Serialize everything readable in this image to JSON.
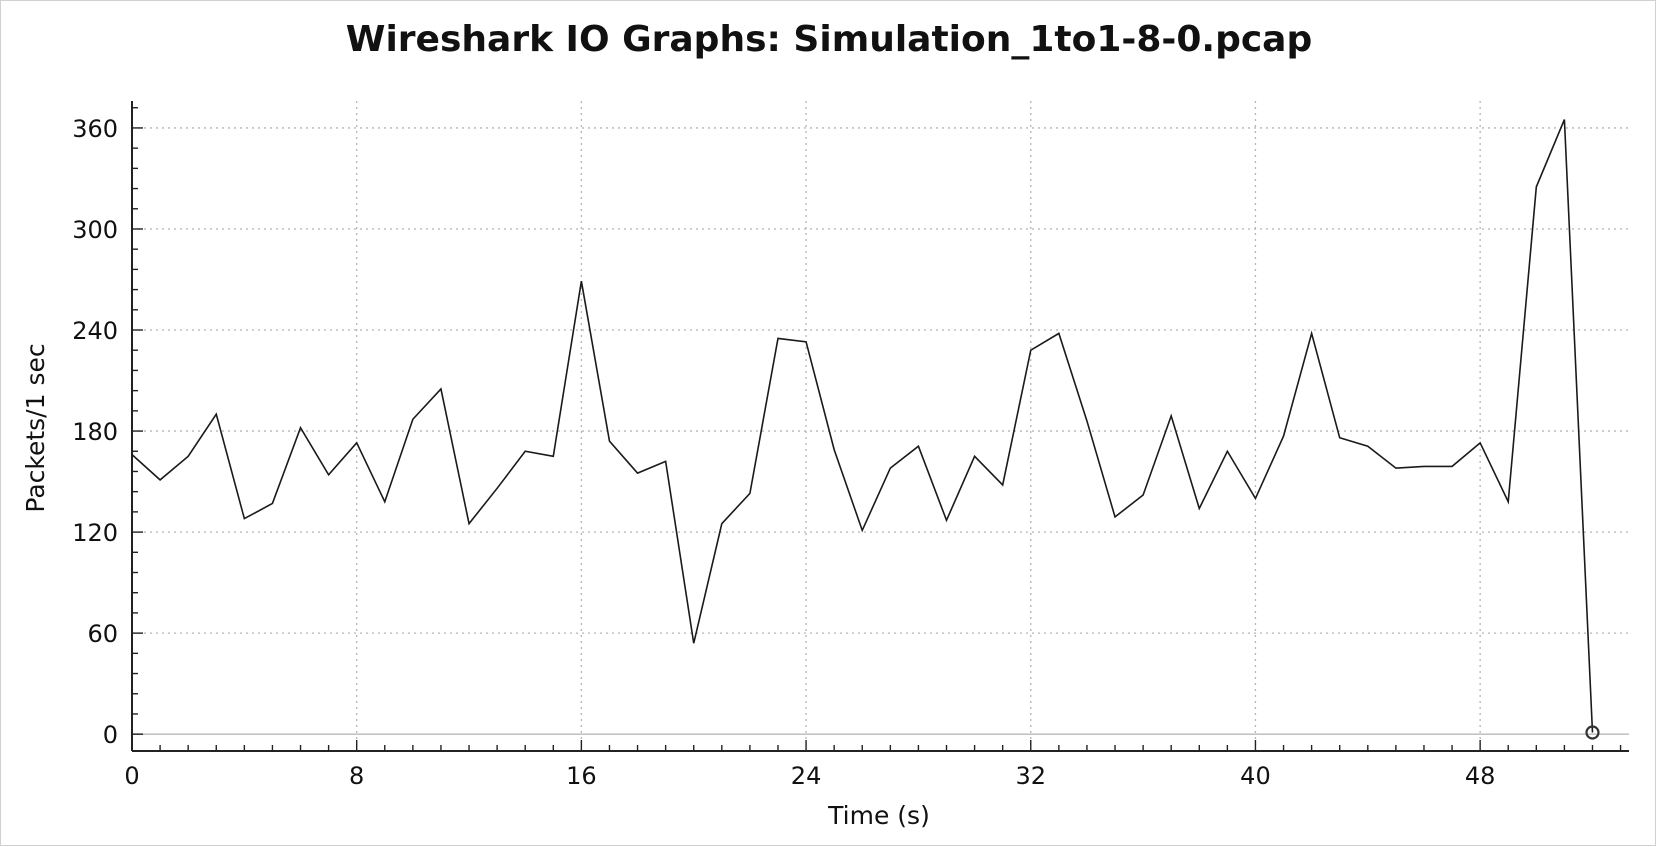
{
  "chart_data": {
    "type": "line",
    "title": "Wireshark IO Graphs: Simulation_1to1-8-0.pcap",
    "xlabel": "Time (s)",
    "ylabel": "Packets/1 sec",
    "xlim": [
      0,
      53.3
    ],
    "ylim": [
      -10,
      376
    ],
    "x_ticks": [
      0,
      8,
      16,
      24,
      32,
      40,
      48
    ],
    "y_ticks": [
      0,
      60,
      120,
      180,
      240,
      300,
      360
    ],
    "x_minor_step": 1,
    "y_minor_step": 12,
    "grid": true,
    "legend": "none",
    "colors": {
      "line": "#1a1a1a",
      "grid": "#b5b5b5",
      "axis": "#222222",
      "baseline": "#c4c4c4",
      "marker": "#333333"
    },
    "series": [
      {
        "x": [
          0,
          1,
          2,
          3,
          4,
          5,
          6,
          7,
          8,
          9,
          10,
          11,
          12,
          13,
          14,
          15,
          16,
          17,
          18,
          19,
          20,
          21,
          22,
          23,
          24,
          25,
          26,
          27,
          28,
          29,
          30,
          31,
          32,
          33,
          34,
          35,
          36,
          37,
          38,
          39,
          40,
          41,
          42,
          43,
          44,
          45,
          46,
          47,
          48,
          49,
          50,
          51,
          52
        ],
        "values": [
          166,
          151,
          165,
          190,
          128,
          137,
          182,
          154,
          173,
          138,
          187,
          205,
          125,
          146,
          168,
          165,
          269,
          174,
          155,
          162,
          54,
          125,
          143,
          235,
          233,
          169,
          121,
          158,
          171,
          127,
          165,
          148,
          228,
          238,
          186,
          129,
          142,
          189,
          134,
          168,
          140,
          177,
          238,
          176,
          171,
          158,
          159,
          159,
          173,
          138,
          325,
          365,
          1
        ]
      }
    ],
    "marker_at_last_point": true
  }
}
